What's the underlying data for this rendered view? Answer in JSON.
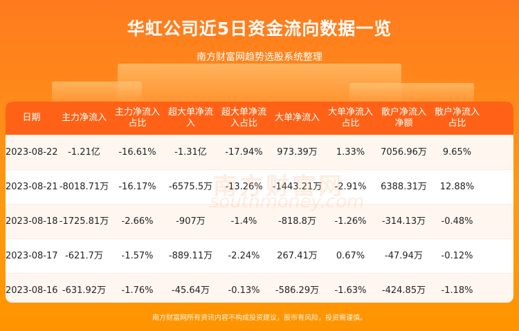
{
  "title": "华虹公司近5日资金流向数据一览",
  "subtitle": "南方财富网趋势选股系统整理",
  "watermark": {
    "cn": "南方财富网",
    "en": "southmoney.com"
  },
  "table": {
    "headers": [
      "日期",
      "主力净流入",
      "主力净流入\n占比",
      "超大单净流\n入",
      "超大单净流\n入占比",
      "大单净流入",
      "大单净流入\n占比",
      "散户净流入\n净额",
      "散户净流入\n占比"
    ],
    "rows": [
      [
        "2023-08-22",
        "-1.21亿",
        "-16.61%",
        "-1.31亿",
        "-17.94%",
        "973.39万",
        "1.33%",
        "7056.96万",
        "9.65%"
      ],
      [
        "2023-08-21",
        "-8018.71万",
        "-16.17%",
        "-6575.5万",
        "-13.26%",
        "-1443.21万",
        "-2.91%",
        "6388.31万",
        "12.88%"
      ],
      [
        "2023-08-18",
        "-1725.81万",
        "-2.66%",
        "-907万",
        "-1.4%",
        "-818.8万",
        "-1.26%",
        "-314.13万",
        "-0.48%"
      ],
      [
        "2023-08-17",
        "-621.7万",
        "-1.57%",
        "-889.11万",
        "-2.24%",
        "267.41万",
        "0.67%",
        "-47.94万",
        "-0.12%"
      ],
      [
        "2023-08-16",
        "-631.92万",
        "-1.76%",
        "-45.64万",
        "-0.13%",
        "-586.29万",
        "-1.63%",
        "-424.85万",
        "-1.18%"
      ]
    ]
  },
  "footer": "南方财富网所有资讯内容不构成投资建议，股市有风险，投资需谨慎。",
  "colors": {
    "header_bg": "#ff6216",
    "accent": "#ff8a1a"
  }
}
